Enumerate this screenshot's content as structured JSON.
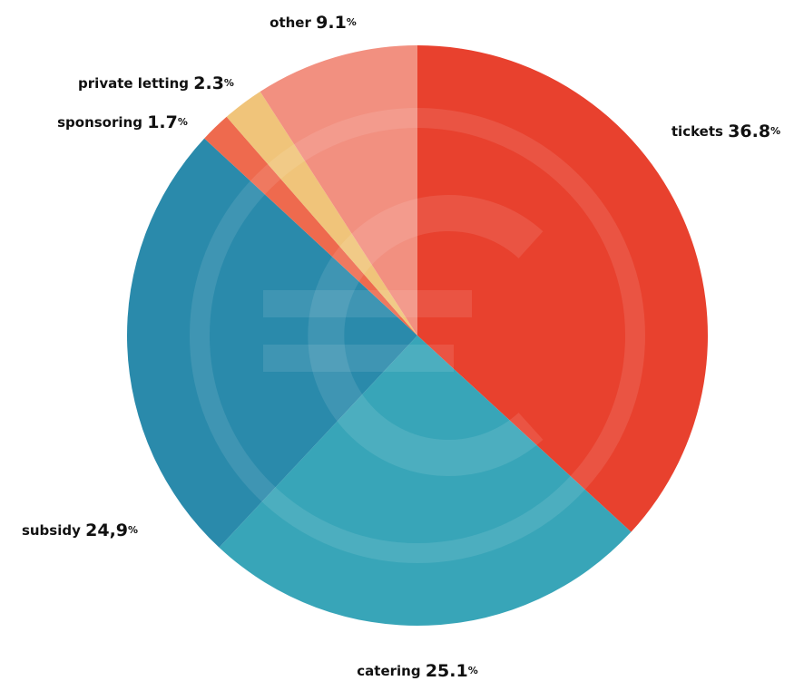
{
  "chart_data": {
    "type": "pie",
    "categories": [
      "tickets",
      "catering",
      "subsidy",
      "sponsoring",
      "private letting",
      "other"
    ],
    "values": [
      36.8,
      25.1,
      24.9,
      1.7,
      2.3,
      9.1
    ],
    "value_labels": [
      "36.8%",
      "25.1%",
      "24,9%",
      "1.7%",
      "2.3%",
      "9.1%"
    ],
    "colors": [
      "#e8412e",
      "#38a5b8",
      "#2a8aab",
      "#ee6a4e",
      "#f0c47a",
      "#f29080"
    ]
  }
}
